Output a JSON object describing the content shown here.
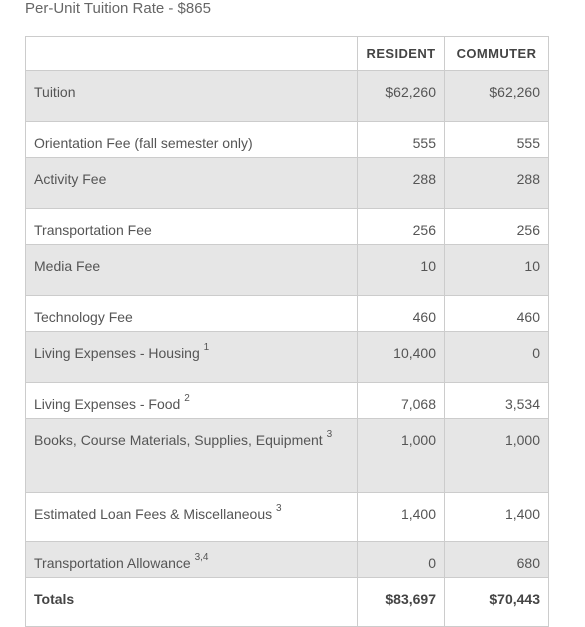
{
  "heading": "Per-Unit Tuition Rate - $865",
  "table": {
    "columns": [
      "RESIDENT",
      "COMMUTER"
    ],
    "rows": [
      {
        "label": "Tuition",
        "sup": "",
        "resident": "$62,260",
        "commuter": "$62,260"
      },
      {
        "label": "Orientation Fee (fall semester only)",
        "sup": "",
        "resident": "555",
        "commuter": "555"
      },
      {
        "label": "Activity Fee",
        "sup": "",
        "resident": "288",
        "commuter": "288"
      },
      {
        "label": "Transportation Fee",
        "sup": "",
        "resident": "256",
        "commuter": "256"
      },
      {
        "label": "Media Fee",
        "sup": "",
        "resident": "10",
        "commuter": "10"
      },
      {
        "label": "Technology Fee",
        "sup": "",
        "resident": "460",
        "commuter": "460"
      },
      {
        "label": "Living Expenses - Housing",
        "sup": "1",
        "resident": "10,400",
        "commuter": "0"
      },
      {
        "label": "Living Expenses - Food",
        "sup": "2",
        "resident": "7,068",
        "commuter": "3,534"
      },
      {
        "label": "Books, Course Materials, Supplies, Equipment",
        "sup": "3",
        "resident": "1,000",
        "commuter": "1,000"
      },
      {
        "label": "Estimated Loan Fees & Miscellaneous",
        "sup": "3",
        "resident": "1,400",
        "commuter": "1,400"
      },
      {
        "label": "Transportation Allowance",
        "sup": "3,4",
        "resident": "0",
        "commuter": "680"
      }
    ],
    "totals": {
      "label": "Totals",
      "resident": "$83,697",
      "commuter": "$70,443"
    }
  }
}
